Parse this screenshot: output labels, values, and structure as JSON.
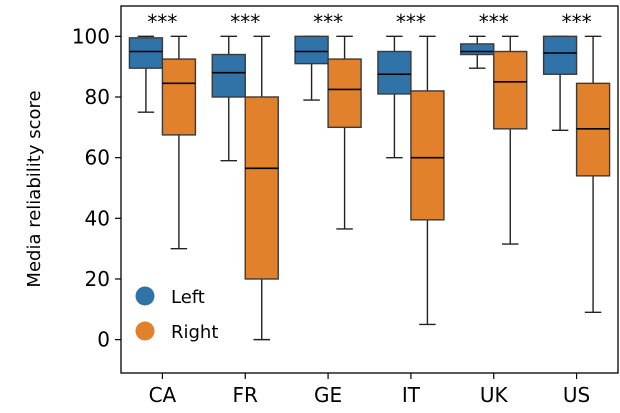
{
  "chart_data": {
    "type": "boxplot",
    "ylabel": "Media reliability score",
    "ylim": [
      -11,
      110
    ],
    "yticks": [
      0,
      20,
      40,
      60,
      80,
      100
    ],
    "categories": [
      "CA",
      "FR",
      "GE",
      "IT",
      "UK",
      "US"
    ],
    "significance": [
      "***",
      "***",
      "***",
      "***",
      "***",
      "***"
    ],
    "legend_position": "lower-left",
    "series": [
      {
        "name": "Left",
        "color": "#2f73a8",
        "boxes": [
          {
            "whislo": 75,
            "q1": 89.5,
            "med": 95,
            "q3": 99.5,
            "whishi": 100
          },
          {
            "whislo": 59,
            "q1": 80,
            "med": 88,
            "q3": 94,
            "whishi": 100
          },
          {
            "whislo": 79,
            "q1": 91,
            "med": 95,
            "q3": 100,
            "whishi": 100
          },
          {
            "whislo": 60,
            "q1": 81,
            "med": 87.5,
            "q3": 95,
            "whishi": 100
          },
          {
            "whislo": 89.5,
            "q1": 94,
            "med": 95,
            "q3": 97.5,
            "whishi": 100
          },
          {
            "whislo": 69,
            "q1": 87.5,
            "med": 94.5,
            "q3": 100,
            "whishi": 100
          }
        ]
      },
      {
        "name": "Right",
        "color": "#e1812c",
        "boxes": [
          {
            "whislo": 30,
            "q1": 67.5,
            "med": 84.5,
            "q3": 92.5,
            "whishi": 100
          },
          {
            "whislo": 0,
            "q1": 20,
            "med": 56.5,
            "q3": 80,
            "whishi": 100
          },
          {
            "whislo": 36.5,
            "q1": 70,
            "med": 82.5,
            "q3": 92.5,
            "whishi": 100
          },
          {
            "whislo": 5,
            "q1": 39.5,
            "med": 60,
            "q3": 82,
            "whishi": 100
          },
          {
            "whislo": 31.5,
            "q1": 69.5,
            "med": 85,
            "q3": 95,
            "whishi": 100
          },
          {
            "whislo": 9,
            "q1": 54,
            "med": 69.5,
            "q3": 84.5,
            "whishi": 100
          }
        ]
      }
    ]
  }
}
